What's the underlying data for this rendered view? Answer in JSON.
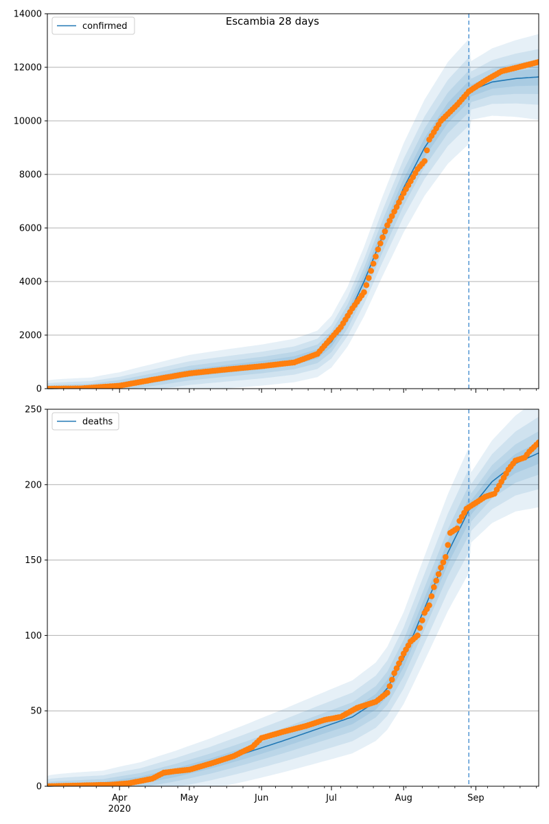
{
  "colors": {
    "fit_line": "#1f77b4",
    "band": "#1f77b4",
    "observed_points": "#ff7f0e",
    "forecast_start_line": "#5b9bd5",
    "grid": "#b0b0b0"
  },
  "chart_data": [
    {
      "type": "line",
      "title": "Escambia 28 days",
      "legend": {
        "label": "confirmed",
        "placement": "top-left"
      },
      "xlim": [
        "2020-03-01",
        "2020-09-28"
      ],
      "ylim": [
        0,
        14000
      ],
      "y_ticks": [
        0,
        2000,
        4000,
        6000,
        8000,
        10000,
        12000,
        14000
      ],
      "y_tick_labels": [
        "0",
        "2000",
        "4000",
        "6000",
        "8000",
        "10000",
        "12000",
        "14000"
      ],
      "grid": "horizontal",
      "forecast_start": "2020-08-29",
      "fit_key_points": [
        [
          "2020-03-01",
          0
        ],
        [
          "2020-03-20",
          30
        ],
        [
          "2020-04-01",
          130
        ],
        [
          "2020-04-15",
          330
        ],
        [
          "2020-05-01",
          580
        ],
        [
          "2020-05-15",
          720
        ],
        [
          "2020-06-01",
          880
        ],
        [
          "2020-06-15",
          1050
        ],
        [
          "2020-06-25",
          1300
        ],
        [
          "2020-07-01",
          1750
        ],
        [
          "2020-07-08",
          2700
        ],
        [
          "2020-07-15",
          4000
        ],
        [
          "2020-07-22",
          5500
        ],
        [
          "2020-08-01",
          7500
        ],
        [
          "2020-08-10",
          9000
        ],
        [
          "2020-08-20",
          10300
        ],
        [
          "2020-08-29",
          11100
        ],
        [
          "2020-09-08",
          11450
        ],
        [
          "2020-09-18",
          11580
        ],
        [
          "2020-09-28",
          11640
        ]
      ],
      "band_half_widths_at_forecast_start": [
        400,
        800,
        1300,
        2000
      ],
      "observed_key_points": [
        [
          "2020-03-01",
          0
        ],
        [
          "2020-03-15",
          8
        ],
        [
          "2020-04-01",
          110
        ],
        [
          "2020-04-15",
          330
        ],
        [
          "2020-05-01",
          570
        ],
        [
          "2020-05-15",
          700
        ],
        [
          "2020-06-01",
          840
        ],
        [
          "2020-06-15",
          980
        ],
        [
          "2020-06-25",
          1300
        ],
        [
          "2020-07-01",
          1900
        ],
        [
          "2020-07-05",
          2300
        ],
        [
          "2020-07-10",
          3000
        ],
        [
          "2020-07-15",
          3600
        ],
        [
          "2020-07-18",
          4400
        ],
        [
          "2020-07-21",
          5200
        ],
        [
          "2020-07-25",
          6100
        ],
        [
          "2020-08-01",
          7300
        ],
        [
          "2020-08-07",
          8200
        ],
        [
          "2020-08-10",
          8500
        ],
        [
          "2020-08-12",
          9300
        ],
        [
          "2020-08-17",
          10000
        ],
        [
          "2020-08-24",
          10600
        ],
        [
          "2020-08-29",
          11100
        ],
        [
          "2020-09-05",
          11500
        ],
        [
          "2020-09-12",
          11850
        ],
        [
          "2020-09-19",
          12000
        ],
        [
          "2020-09-28",
          12200
        ]
      ]
    },
    {
      "type": "line",
      "legend": {
        "label": "deaths",
        "placement": "top-left"
      },
      "xlim": [
        "2020-03-01",
        "2020-09-28"
      ],
      "ylim": [
        0,
        250
      ],
      "y_ticks": [
        0,
        50,
        100,
        150,
        200,
        250
      ],
      "y_tick_labels": [
        "0",
        "50",
        "100",
        "150",
        "200",
        "250"
      ],
      "grid": "horizontal",
      "forecast_start": "2020-08-29",
      "x_tick_labels": [
        {
          "date": "2020-04-01",
          "label": "Apr",
          "sublabel": "2020"
        },
        {
          "date": "2020-05-01",
          "label": "May"
        },
        {
          "date": "2020-06-01",
          "label": "Jun"
        },
        {
          "date": "2020-07-01",
          "label": "Jul"
        },
        {
          "date": "2020-08-01",
          "label": "Aug"
        },
        {
          "date": "2020-09-01",
          "label": "Sep"
        }
      ],
      "fit_key_points": [
        [
          "2020-03-01",
          0
        ],
        [
          "2020-03-25",
          1
        ],
        [
          "2020-04-10",
          4
        ],
        [
          "2020-04-25",
          9
        ],
        [
          "2020-05-10",
          15
        ],
        [
          "2020-05-25",
          22
        ],
        [
          "2020-06-10",
          30
        ],
        [
          "2020-06-25",
          38
        ],
        [
          "2020-07-10",
          46
        ],
        [
          "2020-07-20",
          56
        ],
        [
          "2020-07-25",
          65
        ],
        [
          "2020-08-01",
          85
        ],
        [
          "2020-08-10",
          118
        ],
        [
          "2020-08-20",
          155
        ],
        [
          "2020-08-29",
          183
        ],
        [
          "2020-09-08",
          202
        ],
        [
          "2020-09-18",
          214
        ],
        [
          "2020-09-28",
          221
        ]
      ],
      "band_half_widths_at_forecast_start": [
        9,
        18,
        30,
        45
      ],
      "observed_key_points": [
        [
          "2020-03-01",
          0
        ],
        [
          "2020-03-28",
          1
        ],
        [
          "2020-04-05",
          2
        ],
        [
          "2020-04-15",
          5
        ],
        [
          "2020-04-20",
          9
        ],
        [
          "2020-04-25",
          10
        ],
        [
          "2020-05-01",
          11
        ],
        [
          "2020-05-10",
          15
        ],
        [
          "2020-05-20",
          20
        ],
        [
          "2020-05-28",
          26
        ],
        [
          "2020-06-01",
          32
        ],
        [
          "2020-06-10",
          36
        ],
        [
          "2020-06-20",
          40
        ],
        [
          "2020-06-28",
          44
        ],
        [
          "2020-07-05",
          46
        ],
        [
          "2020-07-12",
          52
        ],
        [
          "2020-07-20",
          56
        ],
        [
          "2020-07-25",
          62
        ],
        [
          "2020-07-28",
          75
        ],
        [
          "2020-08-01",
          88
        ],
        [
          "2020-08-04",
          96
        ],
        [
          "2020-08-07",
          100
        ],
        [
          "2020-08-10",
          115
        ],
        [
          "2020-08-12",
          120
        ],
        [
          "2020-08-14",
          132
        ],
        [
          "2020-08-17",
          145
        ],
        [
          "2020-08-19",
          152
        ],
        [
          "2020-08-21",
          168
        ],
        [
          "2020-08-24",
          171
        ],
        [
          "2020-08-25",
          176
        ],
        [
          "2020-08-28",
          184
        ],
        [
          "2020-09-02",
          189
        ],
        [
          "2020-09-05",
          192
        ],
        [
          "2020-09-09",
          194
        ],
        [
          "2020-09-12",
          202
        ],
        [
          "2020-09-15",
          210
        ],
        [
          "2020-09-18",
          216
        ],
        [
          "2020-09-22",
          218
        ],
        [
          "2020-09-24",
          222
        ],
        [
          "2020-09-28",
          228
        ]
      ]
    }
  ]
}
